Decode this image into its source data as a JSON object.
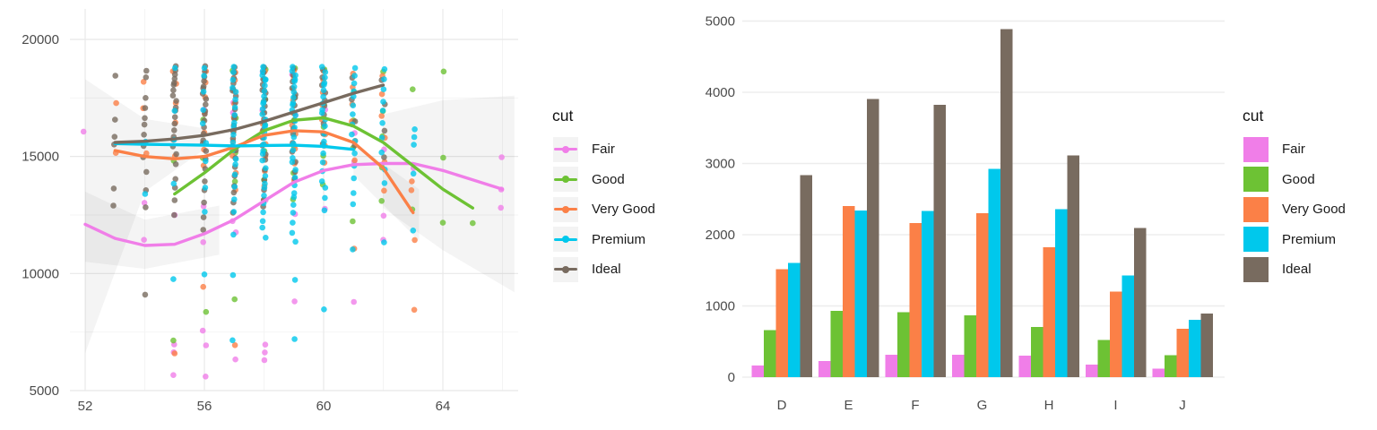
{
  "legend": {
    "title": "cut",
    "entries": [
      {
        "label": "Fair",
        "color": "#F07EE8"
      },
      {
        "label": "Good",
        "color": "#6DC234"
      },
      {
        "label": "Very Good",
        "color": "#FB8047"
      },
      {
        "label": "Premium",
        "color": "#00C8EC"
      },
      {
        "label": "Ideal",
        "color": "#786B5F"
      }
    ]
  },
  "colors": {
    "Fair": "#F07EE8",
    "Good": "#6DC234",
    "Very Good": "#FB8047",
    "Premium": "#00C8EC",
    "Ideal": "#786B5F",
    "grid_major": "#e8e8e8",
    "grid_minor": "#f4f4f4",
    "tick_text": "#4b4b4b",
    "ribbon": "rgba(0,0,0,0.045)"
  },
  "chart_data": [
    {
      "type": "scatter",
      "title": "",
      "xlabel": "",
      "ylabel": "",
      "xlim": [
        51.5,
        66.6
      ],
      "ylim": [
        5000,
        20400
      ],
      "x_ticks": [
        52,
        56,
        60,
        64
      ],
      "x_minor": [
        54,
        58,
        62,
        66
      ],
      "y_ticks": [
        5000,
        10000,
        15000,
        20000
      ],
      "y_minor": [
        7500,
        12500,
        17500
      ],
      "grid": true,
      "legend_position": "right",
      "series_order": [
        "Fair",
        "Good",
        "Very Good",
        "Premium",
        "Ideal"
      ],
      "ribbons": [
        [
          [
            52,
            18300
          ],
          [
            54,
            16600
          ],
          [
            56,
            16200
          ],
          [
            56,
            15300
          ],
          [
            54,
            13500
          ],
          [
            52,
            6600
          ]
        ],
        [
          [
            62,
            16800
          ],
          [
            64,
            17400
          ],
          [
            66.4,
            17600
          ],
          [
            66.4,
            9200
          ],
          [
            64,
            11000
          ],
          [
            62,
            12800
          ]
        ],
        [
          [
            52,
            13500
          ],
          [
            54,
            12300
          ],
          [
            56.5,
            12900
          ],
          [
            56.5,
            10800
          ],
          [
            54,
            10200
          ],
          [
            52,
            10500
          ]
        ],
        [
          [
            61,
            15600
          ],
          [
            63.2,
            13600
          ],
          [
            63.2,
            11400
          ],
          [
            61,
            14200
          ]
        ]
      ],
      "smooth": [
        {
          "cut": "Fair",
          "x_start": 52,
          "x_step": 1,
          "y": [
            12100,
            11500,
            11200,
            11250,
            11700,
            12300,
            13100,
            13900,
            14400,
            14650,
            14700,
            14700,
            14400,
            14000,
            13600
          ]
        },
        {
          "cut": "Good",
          "x_start": 55,
          "x_step": 1,
          "y": [
            13400,
            14300,
            15300,
            16100,
            16550,
            16650,
            16300,
            15600,
            14600,
            13600,
            12800
          ]
        },
        {
          "cut": "Very Good",
          "x_start": 53,
          "x_step": 1,
          "y": [
            15250,
            15000,
            14900,
            15000,
            15400,
            15900,
            16100,
            16050,
            15600,
            14500,
            12600
          ]
        },
        {
          "cut": "Premium",
          "x_start": 53,
          "x_step": 1,
          "y": [
            15550,
            15520,
            15500,
            15480,
            15450,
            15470,
            15480,
            15430,
            15300
          ]
        },
        {
          "cut": "Ideal",
          "x_start": 53,
          "x_step": 1,
          "y": [
            15600,
            15650,
            15750,
            15900,
            16150,
            16500,
            16900,
            17300,
            17700,
            18050
          ]
        }
      ],
      "points": [
        {
          "x": 52,
          "cut": "Fair",
          "y": [
            16000
          ]
        },
        {
          "x": 53,
          "cut": "Very Good",
          "y": [
            17250,
            15150
          ]
        },
        {
          "x": 53,
          "cut": "Ideal",
          "y": [
            18450,
            16600,
            15900,
            15450,
            13600,
            12900
          ]
        },
        {
          "x": 54,
          "cut": "Fair",
          "y": [
            13050,
            11500
          ]
        },
        {
          "x": 54,
          "cut": "Very Good",
          "y": [
            18250,
            17000,
            15100
          ]
        },
        {
          "x": 54,
          "cut": "Ideal",
          "y": [
            18600,
            18350,
            17500,
            17100,
            16700,
            16300,
            15900,
            15450,
            15000,
            14400,
            13500,
            12800,
            9100
          ]
        },
        {
          "x": 54,
          "cut": "Premium",
          "y": [
            15600,
            13400
          ]
        },
        {
          "x": 55,
          "cut": "Fair",
          "y": [
            12500,
            7000,
            6700,
            5600
          ]
        },
        {
          "x": 55,
          "cut": "Good",
          "y": [
            14850,
            7200
          ]
        },
        {
          "x": 55,
          "cut": "Very Good",
          "y": [
            18700,
            18050,
            17250,
            16450,
            15050,
            6650
          ]
        },
        {
          "x": 55,
          "cut": "Ideal",
          "y": [
            18800,
            18650,
            18500,
            18350,
            18200,
            18000,
            17800,
            17600,
            17400,
            17150,
            16900,
            16650,
            16400,
            16150,
            15900,
            15650,
            15400,
            15100,
            14700,
            14100,
            13600,
            13100,
            12500
          ]
        },
        {
          "x": 55,
          "cut": "Premium",
          "y": [
            18750,
            16950,
            15750,
            13900,
            9700
          ]
        },
        {
          "x": 56,
          "cut": "Fair",
          "y": [
            17000,
            12900,
            11400,
            7500,
            6900,
            5600
          ]
        },
        {
          "x": 56,
          "cut": "Good",
          "y": [
            16600,
            15000,
            8300
          ]
        },
        {
          "x": 56,
          "cut": "Very Good",
          "y": [
            18700,
            18100,
            17500,
            16850,
            16050,
            15350,
            14550,
            9400
          ]
        },
        {
          "x": 56,
          "cut": "Ideal",
          "y": [
            18800,
            18600,
            18400,
            18250,
            18050,
            17850,
            17650,
            17450,
            17250,
            17000,
            16750,
            16500,
            16250,
            16000,
            15750,
            15500,
            15200,
            14900,
            14500,
            14000,
            13500,
            13000,
            12400,
            11900
          ]
        },
        {
          "x": 56,
          "cut": "Premium",
          "y": [
            18750,
            18450,
            17800,
            17050,
            16350,
            15550,
            14800,
            13700,
            12700,
            9900
          ]
        },
        {
          "x": 57,
          "cut": "Fair",
          "y": [
            17300,
            16900,
            12300,
            11700,
            6300
          ]
        },
        {
          "x": 57,
          "cut": "Good",
          "y": [
            18700,
            16700,
            15100,
            13900,
            8900
          ]
        },
        {
          "x": 57,
          "cut": "Very Good",
          "y": [
            18650,
            18200,
            17750,
            17250,
            16700,
            16150,
            15600,
            15000,
            14300,
            13600,
            7000
          ]
        },
        {
          "x": 57,
          "cut": "Ideal",
          "y": [
            18750,
            18550,
            18350,
            18150,
            17950,
            17750,
            17550,
            17300,
            17050,
            16800,
            16550,
            16300,
            16050,
            15800,
            15500,
            15200,
            14900,
            14550,
            14200,
            13800,
            13400,
            13000,
            12600
          ]
        },
        {
          "x": 57,
          "cut": "Premium",
          "y": [
            18800,
            18600,
            18300,
            18000,
            17700,
            17400,
            17100,
            16800,
            16500,
            16200,
            15900,
            15600,
            15300,
            14950,
            14600,
            14200,
            13700,
            13200,
            12700,
            11600,
            9900,
            7150
          ]
        },
        {
          "x": 58,
          "cut": "Fair",
          "y": [
            18600,
            17000,
            13200,
            6900,
            6600,
            6300
          ]
        },
        {
          "x": 58,
          "cut": "Good",
          "y": [
            18750,
            17500,
            16300,
            15200,
            14000
          ]
        },
        {
          "x": 58,
          "cut": "Very Good",
          "y": [
            18700,
            18250,
            17800,
            17350,
            16900,
            16450,
            16000,
            15500,
            15000,
            14400,
            13800,
            13100
          ]
        },
        {
          "x": 58,
          "cut": "Ideal",
          "y": [
            18750,
            18550,
            18300,
            18100,
            17900,
            17650,
            17400,
            17150,
            16900,
            16650,
            16400,
            16100,
            15800,
            15500,
            15150,
            14800,
            14400,
            14000,
            13600,
            13200,
            12800
          ]
        },
        {
          "x": 58,
          "cut": "Premium",
          "y": [
            18800,
            18650,
            18500,
            18350,
            18200,
            18000,
            17800,
            17600,
            17400,
            17200,
            17000,
            16800,
            16600,
            16400,
            16200,
            16000,
            15800,
            15550,
            15300,
            15050,
            14800,
            14500,
            14200,
            13900,
            13600,
            13300,
            13000,
            12650,
            12300,
            11900,
            11500
          ]
        },
        {
          "x": 59,
          "cut": "Fair",
          "y": [
            18500,
            16800,
            12600,
            8750
          ]
        },
        {
          "x": 59,
          "cut": "Good",
          "y": [
            18800,
            17600,
            16500,
            15400,
            14300,
            13200
          ]
        },
        {
          "x": 59,
          "cut": "Very Good",
          "y": [
            18750,
            18300,
            17850,
            17400,
            16900,
            16400,
            15900,
            15300,
            14700,
            14000
          ]
        },
        {
          "x": 59,
          "cut": "Ideal",
          "y": [
            18700,
            18450,
            18200,
            17950,
            17700,
            17450,
            17150,
            16850,
            16550,
            16250,
            15900,
            15550,
            15200,
            14800,
            14400,
            14000
          ]
        },
        {
          "x": 59,
          "cut": "Premium",
          "y": [
            18800,
            18650,
            18500,
            18350,
            18150,
            17950,
            17750,
            17550,
            17350,
            17150,
            16950,
            16750,
            16550,
            16300,
            16050,
            15800,
            15550,
            15300,
            15000,
            14700,
            14400,
            14100,
            13800,
            13500,
            13200,
            12900,
            12600,
            12200,
            11800,
            11300,
            9700,
            7200
          ]
        },
        {
          "x": 60,
          "cut": "Fair",
          "y": [
            17000,
            12800
          ]
        },
        {
          "x": 60,
          "cut": "Good",
          "y": [
            18750,
            17300,
            16200,
            15000,
            13800
          ]
        },
        {
          "x": 60,
          "cut": "Very Good",
          "y": [
            18700,
            18200,
            17700,
            17200,
            16600,
            16000,
            15400,
            14700
          ]
        },
        {
          "x": 60,
          "cut": "Ideal",
          "y": [
            18650,
            18350,
            18050,
            17750,
            17450,
            17100,
            16750,
            16400,
            16000,
            15600
          ]
        },
        {
          "x": 60,
          "cut": "Premium",
          "y": [
            18800,
            18600,
            18400,
            18200,
            18000,
            17800,
            17550,
            17300,
            17050,
            16800,
            16550,
            16300,
            16000,
            15700,
            15400,
            15100,
            14750,
            14400,
            14000,
            13600,
            13200,
            12700,
            8500
          ]
        },
        {
          "x": 61,
          "cut": "Fair",
          "y": [
            16000,
            14800,
            8850
          ]
        },
        {
          "x": 61,
          "cut": "Good",
          "y": [
            17800,
            16600,
            15300,
            12200
          ]
        },
        {
          "x": 61,
          "cut": "Very Good",
          "y": [
            18600,
            17900,
            17200,
            16500,
            15700,
            14900,
            11000
          ]
        },
        {
          "x": 61,
          "cut": "Ideal",
          "y": [
            18300,
            17400,
            16500,
            15500
          ]
        },
        {
          "x": 61,
          "cut": "Premium",
          "y": [
            18750,
            18450,
            18150,
            17850,
            17500,
            17150,
            16800,
            16400,
            16000,
            15600,
            15100,
            14600,
            14100,
            13500,
            12900,
            11000
          ]
        },
        {
          "x": 62,
          "cut": "Fair",
          "y": [
            15300,
            12500,
            11500
          ]
        },
        {
          "x": 62,
          "cut": "Good",
          "y": [
            18650,
            17000,
            15800,
            14500,
            13100
          ]
        },
        {
          "x": 62,
          "cut": "Very Good",
          "y": [
            18500,
            17600,
            16700,
            15800,
            14800,
            13600
          ]
        },
        {
          "x": 62,
          "cut": "Ideal",
          "y": [
            18200,
            17200,
            16100,
            15000
          ]
        },
        {
          "x": 62,
          "cut": "Premium",
          "y": [
            18700,
            18300,
            17900,
            17400,
            16900,
            16400,
            15800,
            15200,
            14500,
            13800,
            11300
          ]
        },
        {
          "x": 63,
          "cut": "Fair",
          "y": [
            14500
          ]
        },
        {
          "x": 63,
          "cut": "Good",
          "y": [
            17900,
            12800
          ]
        },
        {
          "x": 63,
          "cut": "Very Good",
          "y": [
            14000,
            13500,
            11400,
            8450
          ]
        },
        {
          "x": 63,
          "cut": "Premium",
          "y": [
            16100,
            15800,
            15500,
            14300,
            11900
          ]
        },
        {
          "x": 64,
          "cut": "Good",
          "y": [
            18600,
            14950,
            12200
          ]
        },
        {
          "x": 65,
          "cut": "Good",
          "y": [
            12150
          ]
        },
        {
          "x": 66,
          "cut": "Fair",
          "y": [
            15000,
            13650,
            12750
          ]
        }
      ]
    },
    {
      "type": "bar",
      "title": "",
      "xlabel": "",
      "ylabel": "",
      "categories": [
        "D",
        "E",
        "F",
        "G",
        "H",
        "I",
        "J"
      ],
      "y_ticks": [
        0,
        1000,
        2000,
        3000,
        4000,
        5000
      ],
      "ylim": [
        0,
        5000
      ],
      "grid": "horizontal",
      "legend_position": "right",
      "series": [
        {
          "name": "Fair",
          "values": [
            163,
            224,
            312,
            314,
            303,
            175,
            119
          ]
        },
        {
          "name": "Good",
          "values": [
            662,
            933,
            909,
            871,
            702,
            522,
            307
          ]
        },
        {
          "name": "Very Good",
          "values": [
            1513,
            2400,
            2164,
            2299,
            1824,
            1204,
            678
          ]
        },
        {
          "name": "Premium",
          "values": [
            1603,
            2337,
            2331,
            2924,
            2360,
            1428,
            808
          ]
        },
        {
          "name": "Ideal",
          "values": [
            2834,
            3903,
            3826,
            4884,
            3115,
            2093,
            896
          ]
        }
      ]
    }
  ]
}
